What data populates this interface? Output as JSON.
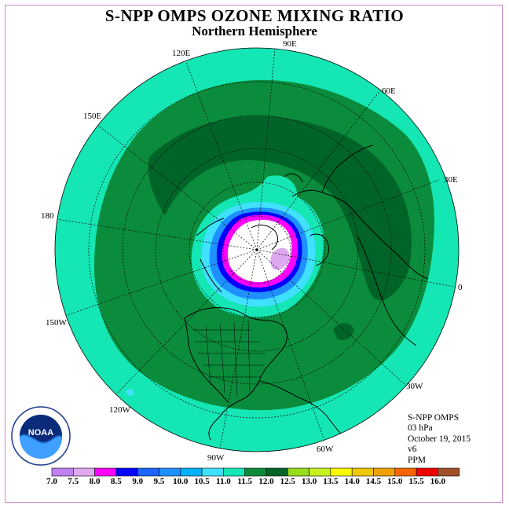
{
  "title": "S-NPP OMPS OZONE MIXING RATIO",
  "subtitle": "Northern Hemisphere",
  "longitude_labels": [
    "90E",
    "60E",
    "30E",
    "0",
    "30W",
    "60W",
    "90W",
    "120W",
    "150W",
    "180",
    "150E",
    "120E"
  ],
  "info": {
    "instrument": "S-NPP OMPS",
    "level": "03 hPa",
    "date": "October 19, 2015",
    "version": "v6",
    "units": "PPM"
  },
  "colorbar": {
    "ticks": [
      "7.0",
      "7.5",
      "8.0",
      "8.5",
      "9.0",
      "9.5",
      "10.0",
      "10.5",
      "11.0",
      "11.5",
      "12.0",
      "12.5",
      "13.0",
      "13.5",
      "14.0",
      "14.5",
      "15.0",
      "15.5",
      "16.0"
    ],
    "colors": [
      "#c080f0",
      "#e0a8f0",
      "#ff00ff",
      "#0000ff",
      "#1e64ff",
      "#1e90ff",
      "#00b0ff",
      "#40e0ff",
      "#14e6b4",
      "#0a8c3c",
      "#006428",
      "#96dc1e",
      "#c8f01e",
      "#fafa00",
      "#f0c800",
      "#f0a000",
      "#fa6400",
      "#f00000",
      "#a05028"
    ]
  },
  "logo_text": "NOAA"
}
